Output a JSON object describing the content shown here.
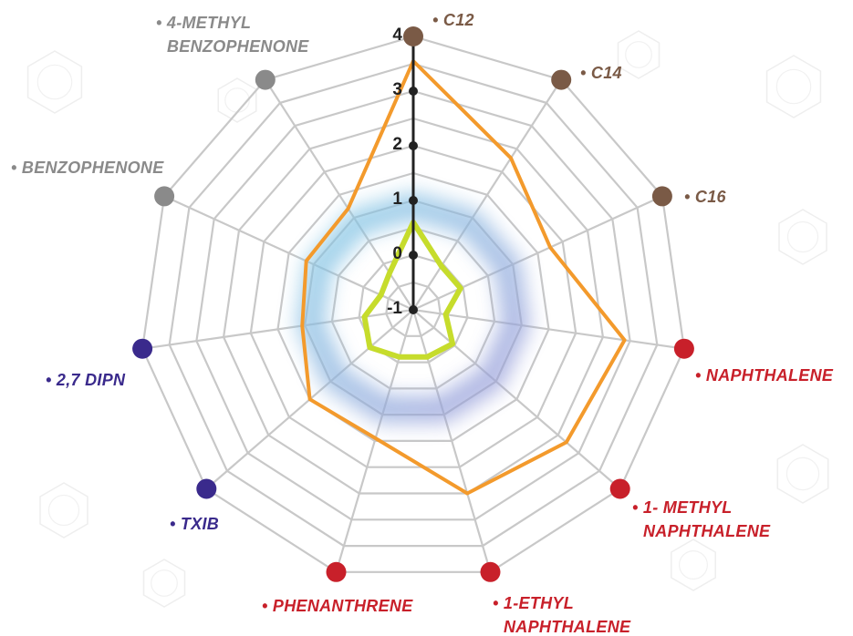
{
  "chart_data": {
    "type": "radar",
    "title": "",
    "r_range": [
      -1,
      4
    ],
    "ticks": [
      "-1",
      "0",
      "1",
      "2",
      "3",
      "4"
    ],
    "grid": true,
    "axes": [
      {
        "lines": [
          "• C12"
        ],
        "color": "#7a5a46",
        "dot": "#7a5a46"
      },
      {
        "lines": [
          "• C14"
        ],
        "color": "#7a5a46",
        "dot": "#7a5a46"
      },
      {
        "lines": [
          "• C16"
        ],
        "color": "#7a5a46",
        "dot": "#7a5a46"
      },
      {
        "lines": [
          "• NAPHTHALENE"
        ],
        "color": "#c8202a",
        "dot": "#c8202a"
      },
      {
        "lines": [
          "• 1- METHYL",
          "NAPHTHALENE"
        ],
        "color": "#c8202a",
        "dot": "#c8202a"
      },
      {
        "lines": [
          "• 1-ETHYL",
          "NAPHTHALENE"
        ],
        "color": "#c8202a",
        "dot": "#c8202a"
      },
      {
        "lines": [
          "• PHENANTHRENE"
        ],
        "color": "#c8202a",
        "dot": "#c8202a"
      },
      {
        "lines": [
          "• TXIB"
        ],
        "color": "#3a2a8c",
        "dot": "#3a2a8c"
      },
      {
        "lines": [
          "• 2,7 DIPN"
        ],
        "color": "#3a2a8c",
        "dot": "#3a2a8c"
      },
      {
        "lines": [
          "• BENZOPHENONE"
        ],
        "color": "#8a8a8a",
        "dot": "#8a8a8a"
      },
      {
        "lines": [
          "• 4-METHYL",
          "BENZOPHENONE"
        ],
        "color": "#8a8a8a",
        "dot": "#8a8a8a"
      }
    ],
    "series": [
      {
        "color": "#f39a2c",
        "values": [
          3.55,
          2.3,
          1.75,
          2.9,
          2.7,
          2.5,
          1.45,
          1.5,
          1.05,
          1.15,
          1.2
        ]
      },
      {
        "color": "#c6dc2c",
        "values": [
          0.6,
          -0.05,
          -0.05,
          -0.4,
          -0.05,
          -0.1,
          -0.1,
          0.05,
          -0.1,
          -0.35,
          -0.2
        ]
      }
    ],
    "band": {
      "center": 0.9,
      "colors": [
        "#7ecbe6",
        "#9a98d8"
      ]
    }
  }
}
